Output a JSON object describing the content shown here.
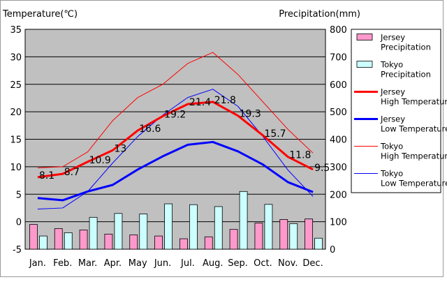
{
  "chart_data": {
    "type": "bar+line",
    "left_axis_label": "Temperature(℃)",
    "right_axis_label": "Precipitation(mm)",
    "left_ylim": [
      -5,
      35
    ],
    "left_ticks": [
      -5,
      0,
      5,
      10,
      15,
      20,
      25,
      30,
      35
    ],
    "right_ylim": [
      0,
      800
    ],
    "right_ticks": [
      0,
      100,
      200,
      300,
      400,
      500,
      600,
      700,
      800
    ],
    "categories": [
      "Jan.",
      "Feb.",
      "Mar.",
      "Apr.",
      "May",
      "Jun.",
      "Jul.",
      "Aug.",
      "Sep.",
      "Oct.",
      "Nov.",
      "Dec."
    ],
    "bar_series": [
      {
        "name": "Jersey Precipitation",
        "color": "#ff99cc",
        "values": [
          90,
          75,
          70,
          55,
          52,
          48,
          38,
          45,
          72,
          95,
          108,
          110
        ]
      },
      {
        "name": "Tokyo Precipitation",
        "color": "#ccffff",
        "values": [
          48,
          60,
          116,
          130,
          128,
          165,
          162,
          155,
          210,
          163,
          93,
          40
        ]
      }
    ],
    "line_series": [
      {
        "name": "Jersey High Temperature",
        "color": "#ff0000",
        "width": "thick",
        "axis": "left",
        "values": [
          8.1,
          8.7,
          10.9,
          13,
          16.6,
          19.2,
          21.4,
          21.8,
          19.3,
          15.7,
          11.8,
          9.5
        ],
        "labels": [
          "8.1",
          "8.7",
          "10.9",
          "13",
          "16.6",
          "19.2",
          "21.4",
          "21.8",
          "19.3",
          "15.7",
          "11.8",
          "9.5"
        ]
      },
      {
        "name": "Jersey Low Temperature",
        "color": "#0000ff",
        "width": "thick",
        "axis": "left",
        "values": [
          4.3,
          3.9,
          5.5,
          6.7,
          9.5,
          11.9,
          14.0,
          14.5,
          12.8,
          10.4,
          7.2,
          5.4
        ]
      },
      {
        "name": "Tokyo High Temperature",
        "color": "#ff0000",
        "width": "thin",
        "axis": "left",
        "values": [
          9.8,
          10.0,
          12.7,
          18.4,
          22.6,
          25.0,
          28.8,
          30.8,
          26.8,
          21.8,
          16.8,
          12.5
        ]
      },
      {
        "name": "Tokyo Low Temperature",
        "color": "#0000ff",
        "width": "thin",
        "axis": "left",
        "values": [
          2.3,
          2.5,
          5.5,
          10.7,
          15.5,
          19.4,
          22.6,
          24.1,
          21.0,
          15.5,
          9.4,
          4.6
        ]
      }
    ],
    "grid": true,
    "legend_position": "right"
  }
}
